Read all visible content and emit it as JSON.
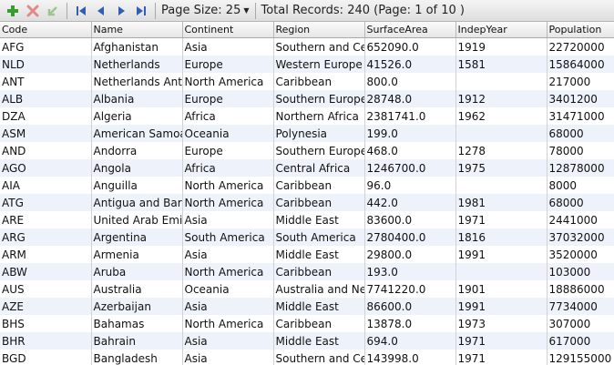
{
  "toolbar": {
    "page_size_label": "Page Size: 25",
    "total_label": "Total Records: 240 (Page: 1 of 10 )",
    "icons": [
      "add-icon",
      "delete-icon",
      "apply-changes-icon",
      "first-page-icon",
      "previous-page-icon",
      "next-page-icon",
      "last-page-icon"
    ]
  },
  "table": {
    "columns": [
      "Code",
      "Name",
      "Continent",
      "Region",
      "SurfaceArea",
      "IndepYear",
      "Population"
    ],
    "rows": [
      [
        "AFG",
        "Afghanistan",
        "Asia",
        "Southern and Central Asia",
        "652090.0",
        "1919",
        "22720000"
      ],
      [
        "NLD",
        "Netherlands",
        "Europe",
        "Western Europe",
        "41526.0",
        "1581",
        "15864000"
      ],
      [
        "ANT",
        "Netherlands Antilles",
        "North America",
        "Caribbean",
        "800.0",
        "",
        "217000"
      ],
      [
        "ALB",
        "Albania",
        "Europe",
        "Southern Europe",
        "28748.0",
        "1912",
        "3401200"
      ],
      [
        "DZA",
        "Algeria",
        "Africa",
        "Northern Africa",
        "2381741.0",
        "1962",
        "31471000"
      ],
      [
        "ASM",
        "American Samoa",
        "Oceania",
        "Polynesia",
        "199.0",
        "",
        "68000"
      ],
      [
        "AND",
        "Andorra",
        "Europe",
        "Southern Europe",
        "468.0",
        "1278",
        "78000"
      ],
      [
        "AGO",
        "Angola",
        "Africa",
        "Central Africa",
        "1246700.0",
        "1975",
        "12878000"
      ],
      [
        "AIA",
        "Anguilla",
        "North America",
        "Caribbean",
        "96.0",
        "",
        "8000"
      ],
      [
        "ATG",
        "Antigua and Barbuda",
        "North America",
        "Caribbean",
        "442.0",
        "1981",
        "68000"
      ],
      [
        "ARE",
        "United Arab Emirates",
        "Asia",
        "Middle East",
        "83600.0",
        "1971",
        "2441000"
      ],
      [
        "ARG",
        "Argentina",
        "South America",
        "South America",
        "2780400.0",
        "1816",
        "37032000"
      ],
      [
        "ARM",
        "Armenia",
        "Asia",
        "Middle East",
        "29800.0",
        "1991",
        "3520000"
      ],
      [
        "ABW",
        "Aruba",
        "North America",
        "Caribbean",
        "193.0",
        "",
        "103000"
      ],
      [
        "AUS",
        "Australia",
        "Oceania",
        "Australia and New Zealand",
        "7741220.0",
        "1901",
        "18886000"
      ],
      [
        "AZE",
        "Azerbaijan",
        "Asia",
        "Middle East",
        "86600.0",
        "1991",
        "7734000"
      ],
      [
        "BHS",
        "Bahamas",
        "North America",
        "Caribbean",
        "13878.0",
        "1973",
        "307000"
      ],
      [
        "BHR",
        "Bahrain",
        "Asia",
        "Middle East",
        "694.0",
        "1971",
        "617000"
      ],
      [
        "BGD",
        "Bangladesh",
        "Asia",
        "Southern and Central Asia",
        "143998.0",
        "1971",
        "129155000"
      ]
    ]
  }
}
